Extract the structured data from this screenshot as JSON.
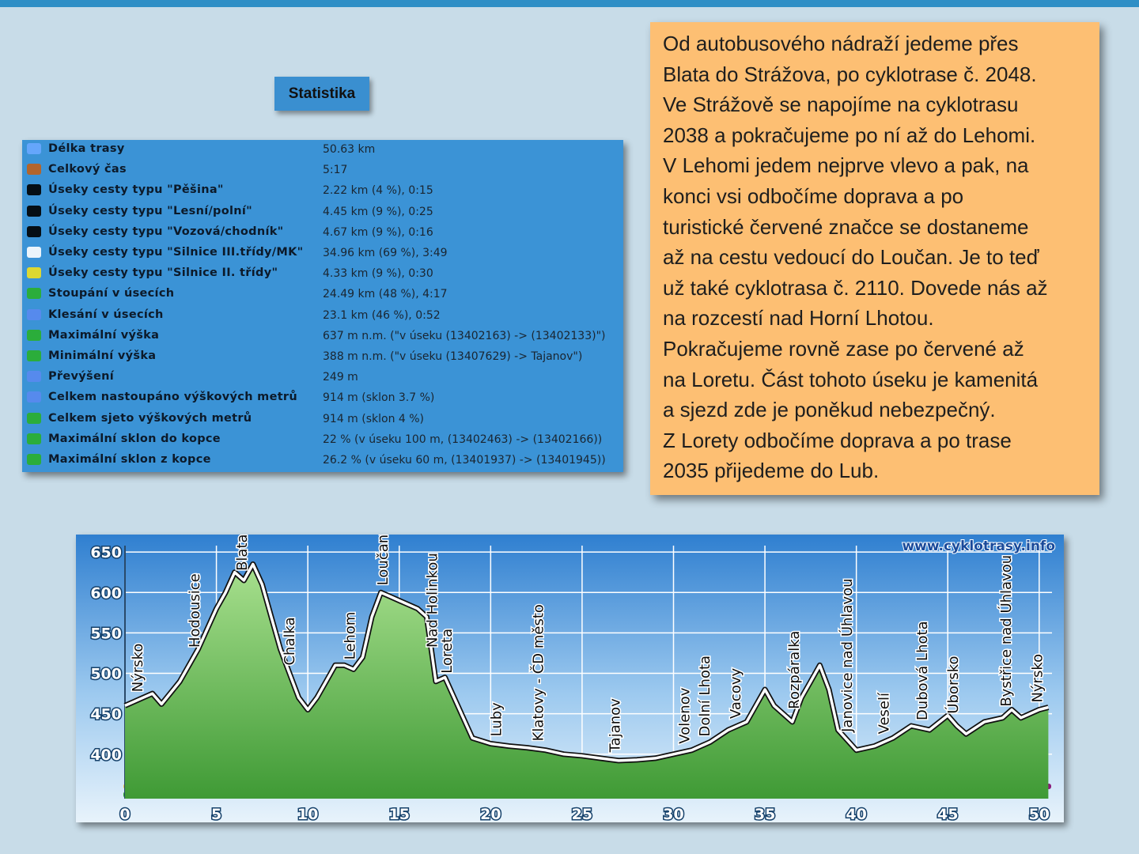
{
  "stats": {
    "title": "Statistika",
    "rows": [
      [
        "Délka trasy",
        "50.63 km"
      ],
      [
        "Celkový čas",
        "5:17"
      ],
      [
        "Úseky cesty typu \"Pěšina\"",
        "2.22 km (4 %), 0:15"
      ],
      [
        "Úseky cesty typu \"Lesní/polní\"",
        "4.45 km (9 %), 0:25"
      ],
      [
        "Úseky cesty typu \"Vozová/chodník\"",
        "4.67 km (9 %), 0:16"
      ],
      [
        "Úseky cesty typu \"Silnice III.třídy/MK\"",
        "34.96 km (69 %), 3:49"
      ],
      [
        "Úseky cesty typu \"Silnice II. třídy\"",
        "4.33 km (9 %), 0:30"
      ],
      [
        "Stoupání v úsecích",
        "24.49 km (48 %), 4:17"
      ],
      [
        "Klesání v úsecích",
        "23.1 km (46 %), 0:52"
      ],
      [
        "Maximální výška",
        "637 m n.m. (\"v úseku (13402163) -> (13402133)\")"
      ],
      [
        "Minimální výška",
        "388 m n.m. (\"v úseku (13407629) -> Tajanov\")"
      ],
      [
        "Převýšení",
        "249 m"
      ],
      [
        "Celkem nastoupáno výškových metrů",
        "914 m (sklon 3.7 %)"
      ],
      [
        "Celkem sjeto výškových metrů",
        "914 m (sklon 4 %)"
      ],
      [
        "Maximální sklon do kopce",
        "22 % (v úseku 100 m, (13402463) -> (13402166))"
      ],
      [
        "Maximální sklon z kopce",
        "26.2 % (v úseku 60 m, (13401937) -> (13401945))"
      ]
    ]
  },
  "description": {
    "lines": [
      "Od autobusového nádraží jedeme přes",
      "Blata do Strážova, po cyklotrase č. 2048.",
      "Ve Strážově se napojíme na cyklotrasu",
      "2038 a pokračujeme po ní až do Lehomi.",
      "V Lehomi jedem nejprve vlevo a pak, na",
      "konci vsi odbočíme doprava a po",
      "turistické červené značce se dostaneme",
      "až na cestu vedoucí  do Loučan. Je to teď",
      "už také cyklotrasa č. 2110. Dovede nás až",
      "na rozcestí nad Horní Lhotou.",
      "Pokračujeme rovně zase po červené až",
      "na Loretu. Část tohoto úseku je kamenitá",
      "a sjezd zde je poněkud nebezpečný.",
      "Z Lorety odbočíme doprava a po trase",
      "2035 přijedeme do Lub."
    ]
  },
  "chart_data": {
    "type": "area",
    "watermark": "www.cyklotrasy.info",
    "color": "#6cc05a",
    "x": [
      0,
      1,
      1.5,
      2,
      3,
      4,
      5,
      5.5,
      6,
      6.5,
      7,
      7.5,
      8,
      8.5,
      9,
      9.5,
      10,
      10.5,
      11,
      11.5,
      12,
      12.5,
      13,
      13.5,
      14,
      14.5,
      15,
      15.5,
      16,
      16.5,
      17,
      17.5,
      18,
      19,
      20,
      21,
      22,
      23,
      24,
      25,
      26,
      27,
      28,
      29,
      30,
      31,
      32,
      33,
      34,
      35,
      35.5,
      36,
      36.5,
      37,
      37.5,
      38,
      38.5,
      39,
      40,
      41,
      42,
      43,
      44,
      45,
      45.5,
      46,
      47,
      48,
      48.5,
      49,
      50,
      50.5
    ],
    "values": [
      460,
      470,
      475,
      462,
      490,
      530,
      580,
      600,
      625,
      615,
      635,
      610,
      570,
      530,
      500,
      470,
      455,
      470,
      490,
      510,
      510,
      505,
      520,
      570,
      600,
      595,
      590,
      585,
      580,
      570,
      490,
      495,
      470,
      420,
      413,
      410,
      408,
      405,
      400,
      398,
      395,
      392,
      393,
      395,
      400,
      405,
      415,
      430,
      440,
      480,
      460,
      450,
      440,
      470,
      490,
      510,
      480,
      430,
      405,
      410,
      420,
      435,
      430,
      448,
      435,
      425,
      440,
      445,
      455,
      445,
      455,
      458
    ],
    "xlim": [
      0,
      50.7
    ],
    "ylim": [
      345,
      658
    ],
    "xticks": [
      0,
      5,
      10,
      15,
      20,
      25,
      30,
      35,
      40,
      45,
      50
    ],
    "yticks": [
      400,
      450,
      500,
      550,
      600,
      650
    ],
    "grid": true,
    "annotations": [
      {
        "text": "Nýrsko",
        "x": 0.7
      },
      {
        "text": "Hodousice",
        "x": 3.8
      },
      {
        "text": "Blata",
        "x": 6.4
      },
      {
        "text": "Chalka",
        "x": 9
      },
      {
        "text": "Lehom",
        "x": 12.3
      },
      {
        "text": "Loučany",
        "x": 14.1
      },
      {
        "text": "Nad Holinkou",
        "x": 16.8
      },
      {
        "text": "Loreta",
        "x": 17.6
      },
      {
        "text": "Luby",
        "x": 20.3
      },
      {
        "text": "Klatovy - ČD město",
        "x": 22.6
      },
      {
        "text": "Tajanov",
        "x": 26.8
      },
      {
        "text": "Volenov",
        "x": 30.6
      },
      {
        "text": "Dolní Lhota",
        "x": 31.7
      },
      {
        "text": "Vacovy",
        "x": 33.4
      },
      {
        "text": "Rozpáralka",
        "x": 36.6
      },
      {
        "text": "Janovice nad Úhlavou",
        "x": 39.5
      },
      {
        "text": "Veselí",
        "x": 41.5
      },
      {
        "text": "Dubová Lhota",
        "x": 43.6
      },
      {
        "text": "Úborsko",
        "x": 45.3
      },
      {
        "text": "Bystřice nad Úhlavou",
        "x": 48.2
      },
      {
        "text": "Nýrsko",
        "x": 49.9
      }
    ]
  }
}
